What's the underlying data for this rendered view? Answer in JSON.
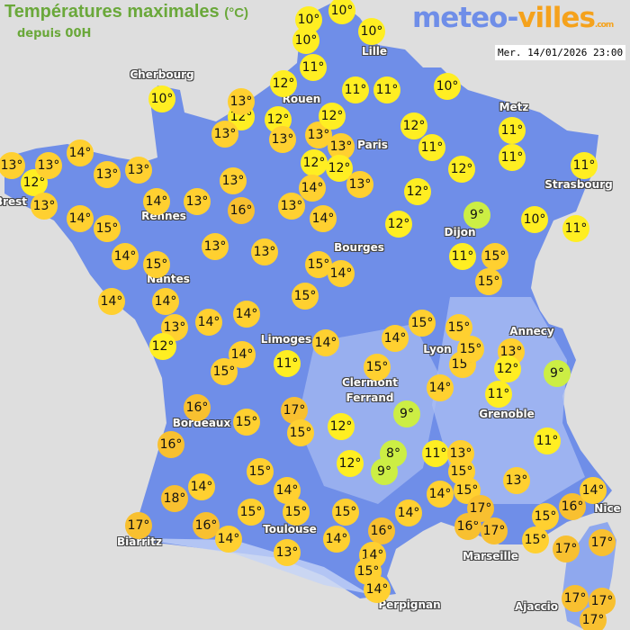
{
  "header": {
    "title": "Températures maximales",
    "unit": "(°C)",
    "subtitle": "depuis 00H"
  },
  "logo": {
    "part1": "meteo-",
    "part2": "villes",
    "part3": ".com"
  },
  "timestamp": "Mer. 14/01/2026 23:00",
  "colors": {
    "background": "#dedede",
    "land": "#6f8ee8",
    "cold": "#ccee44",
    "mild": "#ffee22",
    "warm": "#ffd030",
    "hot": "#f8c030"
  },
  "cities": [
    "Cherbourg",
    "Lille",
    "Rouen",
    "Paris",
    "Metz",
    "Strasbourg",
    "Brest",
    "Rennes",
    "Nantes",
    "Bourges",
    "Dijon",
    "Limoges",
    "Clermont",
    "Ferrand",
    "Lyon",
    "Annecy",
    "Grenoble",
    "Bordeaux",
    "Toulouse",
    "Biarritz",
    "Marseille",
    "Nice",
    "Perpignan",
    "Ajaccio"
  ],
  "temperatures": [
    "10°",
    "10°",
    "10°",
    "10°",
    "11°",
    "10°",
    "12°",
    "13°",
    "12°",
    "12°",
    "13°",
    "13°",
    "13°",
    "12°",
    "11°",
    "11°",
    "10°",
    "12°",
    "11°",
    "13°",
    "12°",
    "12°",
    "13°",
    "14°",
    "13°",
    "12°",
    "13°",
    "14°",
    "13°",
    "13°",
    "13°",
    "14°",
    "15°",
    "14°",
    "13°",
    "13°",
    "16°",
    "13°",
    "14°",
    "12°",
    "12°",
    "12°",
    "11°",
    "11°",
    "11°",
    "9°",
    "10°",
    "11°",
    "11°",
    "15°",
    "15°",
    "13°",
    "13°",
    "14°",
    "15°",
    "15°",
    "14°",
    "14°",
    "14°",
    "15°",
    "13°",
    "14°",
    "14°",
    "12°",
    "15°",
    "14°",
    "11°",
    "14°",
    "14°",
    "15°",
    "15°",
    "15°",
    "15°",
    "13°",
    "12°",
    "9°",
    "11°",
    "15°",
    "14°",
    "16°",
    "15°",
    "17°",
    "15°",
    "12°",
    "9°",
    "16°",
    "12°",
    "8°",
    "9°",
    "11°",
    "13°",
    "15°",
    "11°",
    "13°",
    "15°",
    "14°",
    "14°",
    "18°",
    "14°",
    "15°",
    "17°",
    "16°",
    "15°",
    "16°",
    "17°",
    "16°",
    "14°",
    "15°",
    "15°",
    "14°",
    "14°",
    "14°",
    "16°",
    "17°",
    "15°",
    "15°",
    "17°",
    "17°",
    "13°",
    "14°",
    "15°",
    "14°",
    "17°",
    "17°",
    "17°"
  ]
}
